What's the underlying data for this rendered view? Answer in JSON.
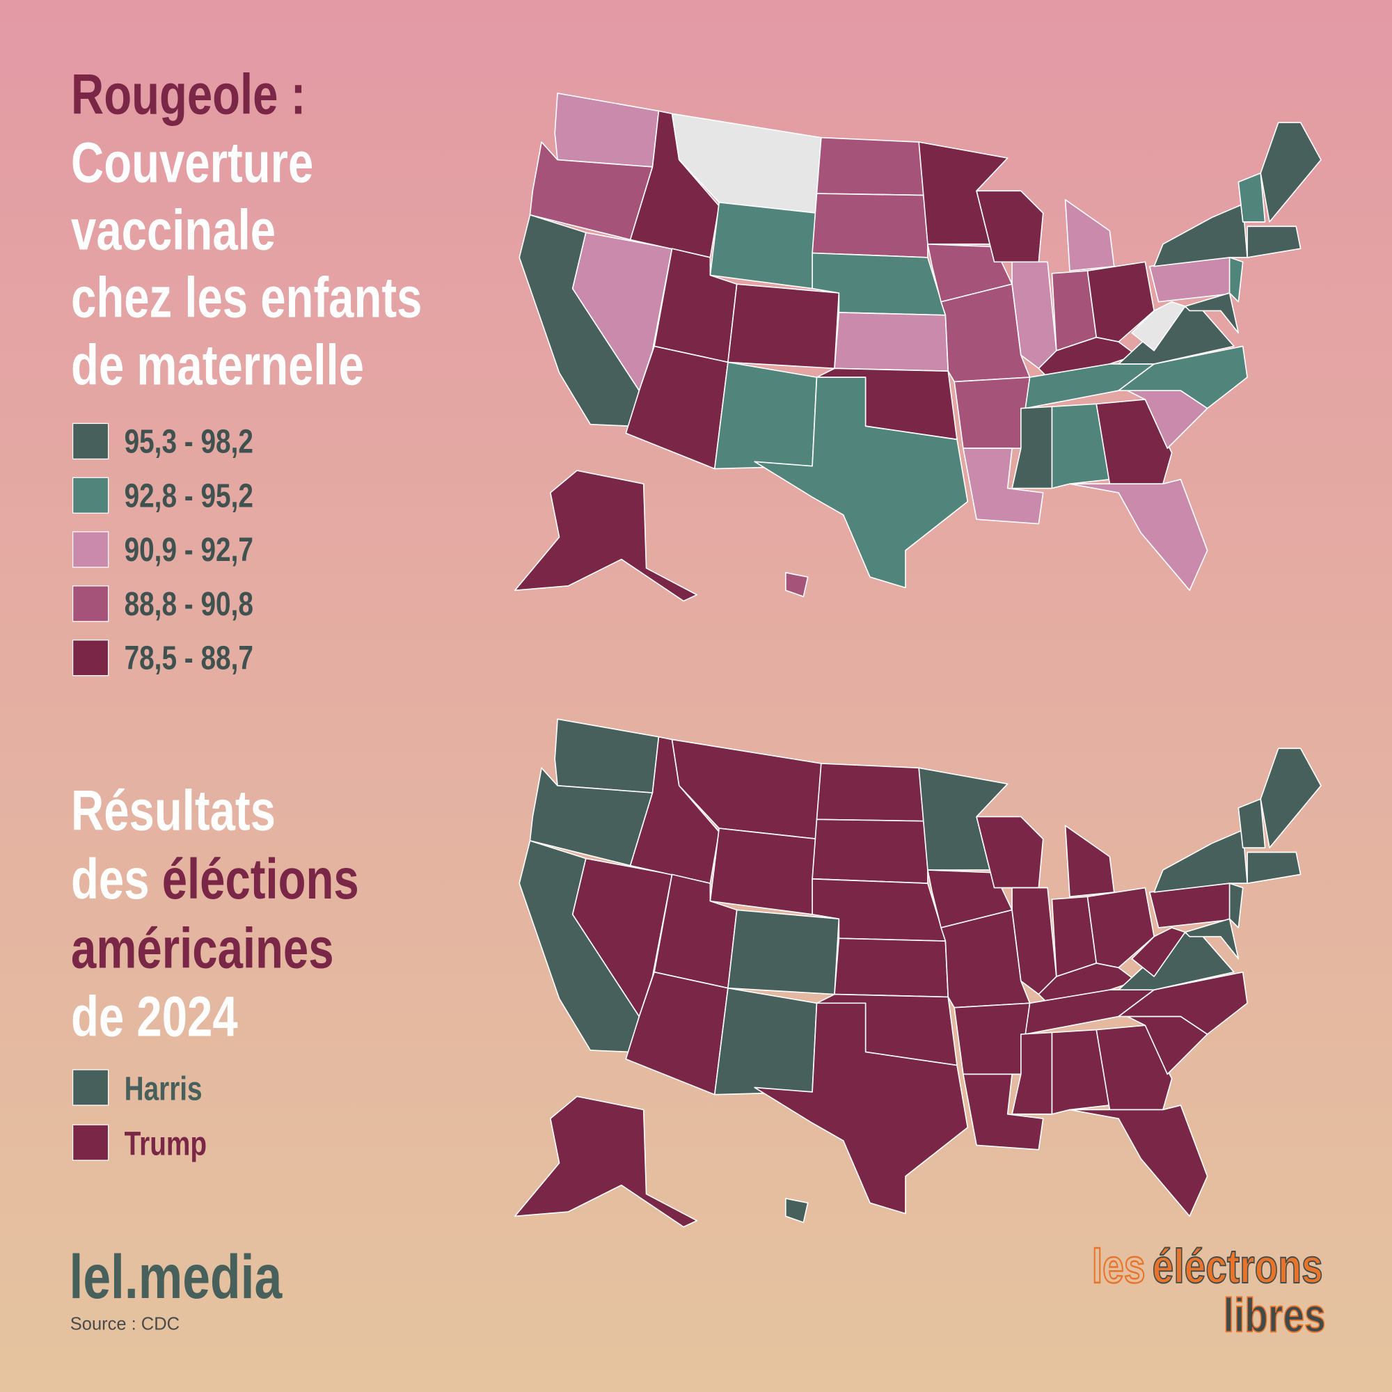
{
  "title_1": {
    "lines": [
      "Rougeole :",
      "Couverture",
      "vaccinale",
      "chez les enfants",
      "de maternelle"
    ]
  },
  "legend_1": [
    {
      "label": "95,3 - 98,2",
      "color": "#47605b"
    },
    {
      "label": "92,8 - 95,2",
      "color": "#51847b"
    },
    {
      "label": "90,9 - 92,7",
      "color": "#c98aab"
    },
    {
      "label": "88,8 - 90,8",
      "color": "#a6537a"
    },
    {
      "label": "78,5 - 88,7",
      "color": "#792647"
    }
  ],
  "no_data_color": "#e6e6e6",
  "title_2": {
    "lines": [
      [
        "Résultats"
      ],
      [
        "des ",
        "éléctions"
      ],
      [
        "américaines"
      ],
      [
        "de 2024"
      ]
    ]
  },
  "legend_2": [
    {
      "label": "Harris",
      "color": "#47605b"
    },
    {
      "label": "Trump",
      "color": "#792647"
    }
  ],
  "footer": {
    "brand": "lel.media",
    "source": "Source : CDC"
  },
  "logo": {
    "line_1a": "les",
    "line_1b": "éléctrons",
    "line_2": "libres"
  }
}
